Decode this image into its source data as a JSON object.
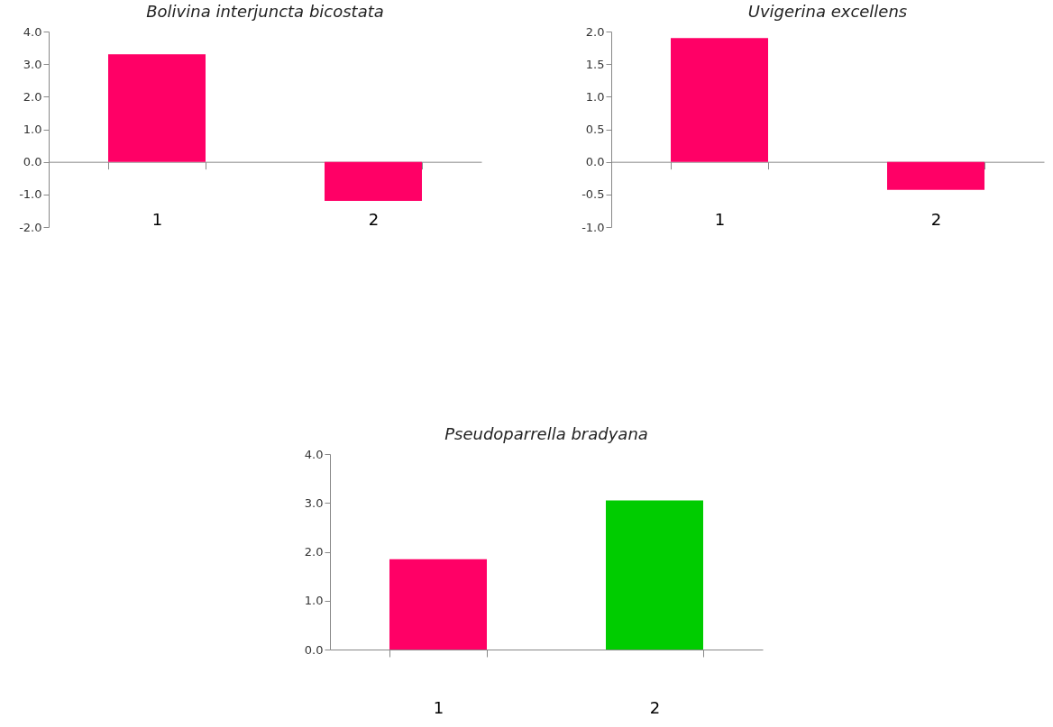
{
  "chart_data": [
    {
      "type": "bar",
      "title": "Bolivina interjuncta bicostata",
      "categories": [
        "1",
        "2"
      ],
      "values": [
        3.3,
        -1.2
      ],
      "color": "#ff0066",
      "ylim": [
        -2,
        4
      ],
      "yticks": [
        {
          "value": -2,
          "label": "-2.0"
        },
        {
          "value": -1,
          "label": "-1.0"
        },
        {
          "value": 0,
          "label": "0.0"
        },
        {
          "value": 1,
          "label": "1.0"
        },
        {
          "value": 2,
          "label": "2.0"
        },
        {
          "value": 3,
          "label": "3.0"
        },
        {
          "value": 4,
          "label": "4.0"
        }
      ]
    },
    {
      "type": "bar",
      "title": "Uvigerina excellens",
      "categories": [
        "1",
        "2"
      ],
      "values": [
        1.9,
        -0.43
      ],
      "color": "#ff0066",
      "ylim": [
        -1,
        2
      ],
      "yticks": [
        {
          "value": -1,
          "label": "-1.0"
        },
        {
          "value": -0.5,
          "label": "-0.5"
        },
        {
          "value": 0,
          "label": "0.0"
        },
        {
          "value": 0.5,
          "label": "0.5"
        },
        {
          "value": 1,
          "label": "1.0"
        },
        {
          "value": 1.5,
          "label": "1.5"
        },
        {
          "value": 2,
          "label": "2.0"
        }
      ]
    },
    {
      "type": "bar",
      "title": "Pseudoparrella bradyana",
      "categories": [
        "1",
        "2"
      ],
      "values": [
        1.85,
        3.05
      ],
      "colors": [
        "#ff0066",
        "#00cc00"
      ],
      "ylim": [
        0,
        4
      ],
      "yticks": [
        {
          "value": 0,
          "label": "0.0"
        },
        {
          "value": 1,
          "label": "1.0"
        },
        {
          "value": 2,
          "label": "2.0"
        },
        {
          "value": 3,
          "label": "3.0"
        },
        {
          "value": 4,
          "label": "4.0"
        }
      ]
    }
  ]
}
